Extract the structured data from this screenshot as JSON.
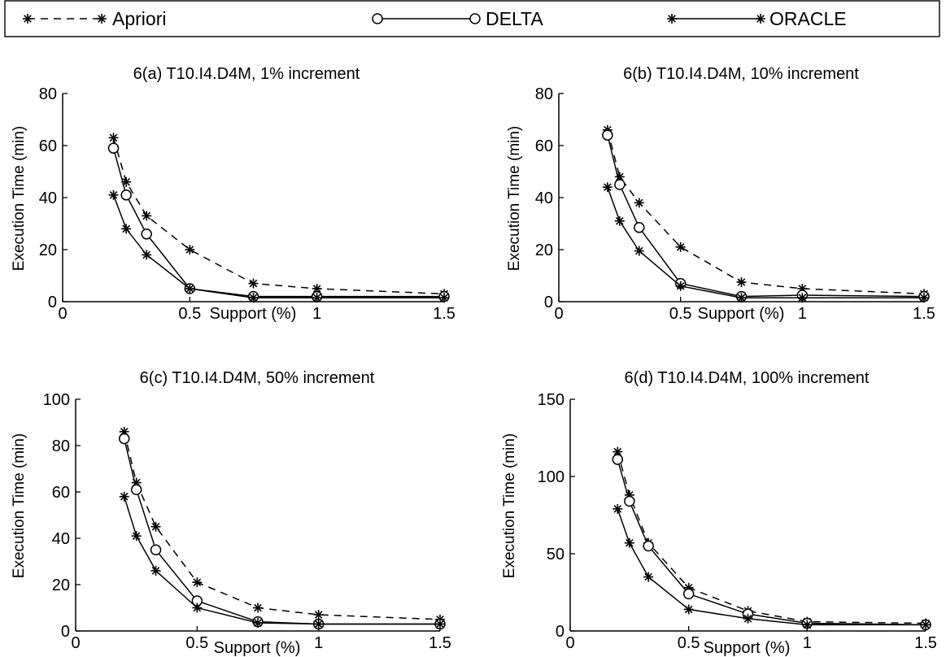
{
  "legend": {
    "placement": "top",
    "entries": [
      {
        "label": "Apriori",
        "marker": "asterisk",
        "line": "dashed"
      },
      {
        "label": "DELTA",
        "marker": "circle",
        "line": "solid"
      },
      {
        "label": "ORACLE",
        "marker": "asterisk",
        "line": "solid"
      }
    ]
  },
  "colors": {
    "ink": "#000000",
    "background": "#ffffff"
  },
  "chart_data": [
    {
      "type": "line",
      "title": "6(a) T10.I4.D4M, 1% increment",
      "xlabel": "Support (%)",
      "ylabel": "Execution Time (min)",
      "xlim": [
        0,
        1.5
      ],
      "ylim": [
        0,
        80
      ],
      "xticks": [
        0,
        0.5,
        1,
        1.5
      ],
      "xtick_labels": [
        "0",
        "0.5",
        "1",
        "1.5"
      ],
      "yticks": [
        0,
        20,
        40,
        60,
        80
      ],
      "ytick_labels": [
        "0",
        "20",
        "40",
        "60",
        "80"
      ],
      "grid": false,
      "x": [
        0.2,
        0.25,
        0.33,
        0.5,
        0.75,
        1,
        1.5
      ],
      "series": [
        {
          "name": "Apriori",
          "values": [
            63,
            46,
            33,
            20,
            7,
            5,
            3
          ]
        },
        {
          "name": "DELTA",
          "values": [
            59,
            41,
            26,
            5,
            2,
            2,
            2
          ]
        },
        {
          "name": "ORACLE",
          "values": [
            41,
            28,
            18,
            5,
            1.5,
            1.5,
            1.5
          ]
        }
      ]
    },
    {
      "type": "line",
      "title": "6(b) T10.I4.D4M, 10% increment",
      "xlabel": "Support (%)",
      "ylabel": "Execution Time (min)",
      "xlim": [
        0,
        1.5
      ],
      "ylim": [
        0,
        80
      ],
      "xticks": [
        0,
        0.5,
        1,
        1.5
      ],
      "xtick_labels": [
        "0",
        "0.5",
        "1",
        "1.5"
      ],
      "yticks": [
        0,
        20,
        40,
        60,
        80
      ],
      "ytick_labels": [
        "0",
        "20",
        "40",
        "60",
        "80"
      ],
      "grid": false,
      "x": [
        0.2,
        0.25,
        0.33,
        0.5,
        0.75,
        1,
        1.5
      ],
      "series": [
        {
          "name": "Apriori",
          "values": [
            66,
            48,
            38,
            21,
            7.5,
            5,
            3
          ]
        },
        {
          "name": "DELTA",
          "values": [
            64,
            45,
            28.5,
            7,
            2,
            2.5,
            2
          ]
        },
        {
          "name": "ORACLE",
          "values": [
            44,
            31,
            19.5,
            6,
            1.5,
            1.5,
            1.5
          ]
        }
      ]
    },
    {
      "type": "line",
      "title": "6(c) T10.I4.D4M, 50% increment",
      "xlabel": "Support (%)",
      "ylabel": "Execution Time (min)",
      "xlim": [
        0,
        1.5
      ],
      "ylim": [
        0,
        100
      ],
      "xticks": [
        0,
        0.5,
        1,
        1.5
      ],
      "xtick_labels": [
        "0",
        "0.5",
        "1",
        "1.5"
      ],
      "yticks": [
        0,
        20,
        40,
        60,
        80,
        100
      ],
      "ytick_labels": [
        "0",
        "20",
        "40",
        "60",
        "80",
        "100"
      ],
      "grid": false,
      "x": [
        0.2,
        0.25,
        0.33,
        0.5,
        0.75,
        1,
        1.5
      ],
      "series": [
        {
          "name": "Apriori",
          "values": [
            86,
            64,
            45,
            21,
            10,
            7,
            5
          ]
        },
        {
          "name": "DELTA",
          "values": [
            83,
            61,
            35,
            13,
            4,
            3,
            3
          ]
        },
        {
          "name": "ORACLE",
          "values": [
            58,
            41,
            26,
            10,
            3.5,
            3,
            3
          ]
        }
      ]
    },
    {
      "type": "line",
      "title": "6(d) T10.I4.D4M, 100% increment",
      "xlabel": "Support (%)",
      "ylabel": "Execution Time (min)",
      "xlim": [
        0,
        1.5
      ],
      "ylim": [
        0,
        150
      ],
      "xticks": [
        0,
        0.5,
        1,
        1.5
      ],
      "xtick_labels": [
        "0",
        "0.5",
        "1",
        "1.5"
      ],
      "yticks": [
        0,
        50,
        100,
        150
      ],
      "ytick_labels": [
        "0",
        "50",
        "100",
        "150"
      ],
      "grid": false,
      "x": [
        0.2,
        0.25,
        0.33,
        0.5,
        0.75,
        1,
        1.5
      ],
      "series": [
        {
          "name": "Apriori",
          "values": [
            116,
            88,
            57,
            28,
            13,
            6,
            5
          ]
        },
        {
          "name": "DELTA",
          "values": [
            111,
            84,
            55,
            24,
            11,
            5,
            4
          ]
        },
        {
          "name": "ORACLE",
          "values": [
            79,
            57,
            35,
            14,
            8,
            4,
            4
          ]
        }
      ]
    }
  ]
}
